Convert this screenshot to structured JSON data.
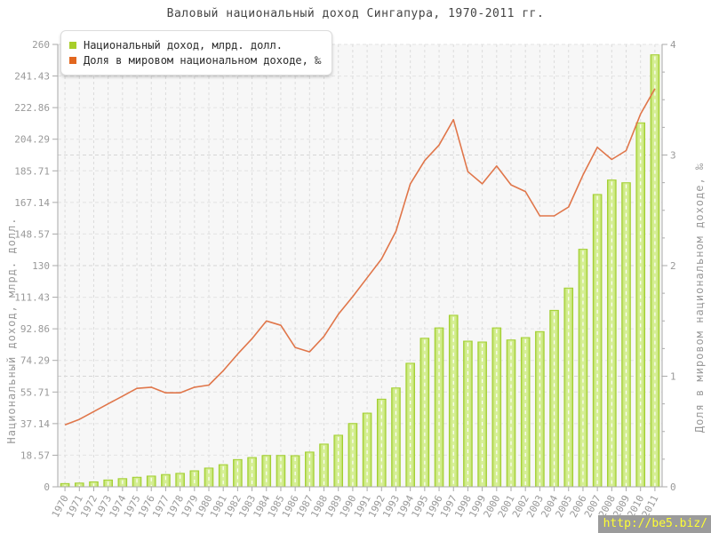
{
  "title": "Валовый национальный доход Сингапура, 1970-2011 гг.",
  "legend": {
    "items": [
      {
        "label": "Национальный доход, млрд. долл.",
        "color": "#a8ce2a"
      },
      {
        "label": "Доля в мировом национальном доходе, ‰",
        "color": "#e2671f"
      }
    ]
  },
  "watermark": {
    "text": "http://be5.biz/",
    "bg": "#9b9b9b",
    "color": "#ffff33"
  },
  "colors": {
    "bar_fill": "#cdea83",
    "bar_edge": "#a2cf30",
    "line": "#e0764a",
    "plot_bg": "#f7f7f7",
    "grid": "#dedede",
    "axis": "#aaaaaa",
    "tick_text": "#999999",
    "title_text": "#454545"
  },
  "chart_data": {
    "type": "bar",
    "title": "Валовый национальный доход Сингапура, 1970-2011 гг.",
    "categories": [
      "1970",
      "1971",
      "1972",
      "1973",
      "1974",
      "1975",
      "1976",
      "1977",
      "1978",
      "1979",
      "1980",
      "1981",
      "1982",
      "1983",
      "1984",
      "1985",
      "1986",
      "1987",
      "1988",
      "1989",
      "1990",
      "1991",
      "1992",
      "1993",
      "1994",
      "1995",
      "1996",
      "1997",
      "1998",
      "1999",
      "2000",
      "2001",
      "2002",
      "2003",
      "2004",
      "2005",
      "2006",
      "2007",
      "2008",
      "2009",
      "2010",
      "2011"
    ],
    "series": [
      {
        "name": "Национальный доход, млрд. долл.",
        "type": "bar",
        "axis": "left",
        "values": [
          1.9,
          2.2,
          2.9,
          4.0,
          4.8,
          5.6,
          6.3,
          7.2,
          7.9,
          9.4,
          11.0,
          13.0,
          16.0,
          17.2,
          18.4,
          18.4,
          18.3,
          20.4,
          25.1,
          30.3,
          37.2,
          43.3,
          51.5,
          58.1,
          72.6,
          87.3,
          93.4,
          100.8,
          85.6,
          85.1,
          93.4,
          86.3,
          87.7,
          91.2,
          103.7,
          116.8,
          139.6,
          171.8,
          180.3,
          178.7,
          213.9,
          253.9
        ]
      },
      {
        "name": "Доля в мировом национальном доходе, ‰",
        "type": "line",
        "axis": "right",
        "values": [
          0.56,
          0.61,
          0.68,
          0.75,
          0.82,
          0.89,
          0.9,
          0.85,
          0.85,
          0.9,
          0.92,
          1.05,
          1.2,
          1.34,
          1.5,
          1.46,
          1.26,
          1.22,
          1.36,
          1.56,
          1.72,
          1.89,
          2.06,
          2.31,
          2.74,
          2.95,
          3.09,
          3.32,
          2.85,
          2.74,
          2.9,
          2.73,
          2.67,
          2.45,
          2.45,
          2.53,
          2.82,
          3.07,
          2.96,
          3.04,
          3.37,
          3.6
        ]
      }
    ],
    "left_axis": {
      "title": "Национальный доход, млрд. долл.",
      "min": 0,
      "max": 260,
      "ticks": [
        "0",
        "18.57",
        "37.14",
        "55.71",
        "74.29",
        "92.86",
        "111.43",
        "130",
        "148.57",
        "167.14",
        "185.71",
        "204.29",
        "222.86",
        "241.43",
        "260"
      ]
    },
    "right_axis": {
      "title": "Доля в мировом национальном доходе, ‰",
      "min": 0,
      "max": 4,
      "ticks": [
        "0",
        "1",
        "2",
        "3",
        "4"
      ],
      "minor_step": 0.25
    },
    "x_axis": {
      "labels_rotated": true
    },
    "grid": true,
    "legend_position": "top-left"
  }
}
